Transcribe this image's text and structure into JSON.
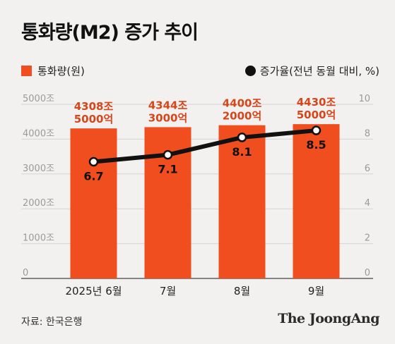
{
  "title": "통화량(M2) 증가 추이",
  "legend": {
    "bars": "통화량(원)",
    "line": "증가율(전년 동월 대비, %)"
  },
  "source": "자료: 한국은행",
  "brand": "The JoongAng",
  "colors": {
    "bar": "#f04e1e",
    "bar_label": "#d6461b",
    "line": "#111111",
    "axis_text": "#9a9a9a",
    "grid": "#d4d4d4",
    "background": "#f2f1ef"
  },
  "chart_data": {
    "type": "bar",
    "categories": [
      "2025년 6월",
      "7월",
      "8월",
      "9월"
    ],
    "series": [
      {
        "name": "통화량(원)",
        "type": "bar",
        "axis": "left",
        "values": [
          4308.5,
          4344.3,
          4400.2,
          4430.5
        ],
        "labels": [
          [
            "4308조",
            "5000억"
          ],
          [
            "4344조",
            "3000억"
          ],
          [
            "4400조",
            "2000억"
          ],
          [
            "4430조",
            "5000억"
          ]
        ]
      },
      {
        "name": "증가율(전년 동월 대비, %)",
        "type": "line",
        "axis": "right",
        "values": [
          6.7,
          7.1,
          8.1,
          8.5
        ],
        "labels": [
          "6.7",
          "7.1",
          "8.1",
          "8.5"
        ]
      }
    ],
    "y_left": {
      "ylim": [
        0,
        5000
      ],
      "ticks": [
        0,
        1000,
        2000,
        3000,
        4000,
        5000
      ],
      "tick_labels": [
        "0",
        "1000조",
        "2000조",
        "3000조",
        "4000조",
        "5000조"
      ]
    },
    "y_right": {
      "ylim": [
        0,
        10
      ],
      "ticks": [
        0,
        2,
        4,
        6,
        8,
        10
      ],
      "tick_labels": [
        "0",
        "2",
        "4",
        "6",
        "8",
        "10"
      ]
    },
    "grid": true,
    "legend_position": "top"
  }
}
